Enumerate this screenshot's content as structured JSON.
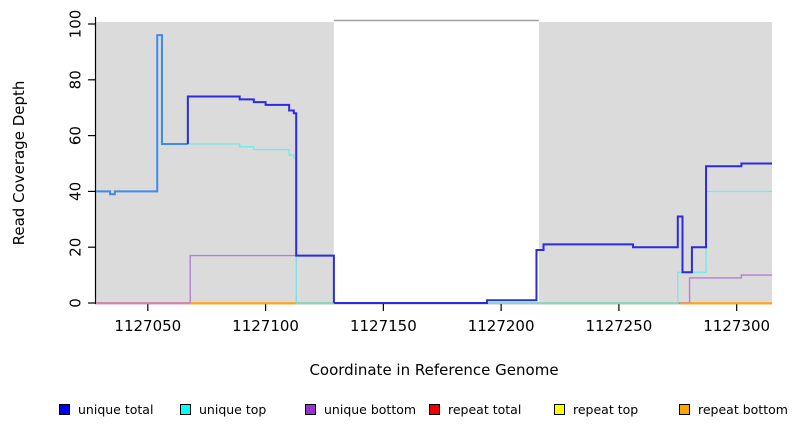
{
  "chart_data": {
    "type": "line",
    "step": true,
    "title": "",
    "xlabel": "Coordinate in Reference Genome",
    "ylabel": "Read Coverage Depth",
    "xlim": [
      1127028,
      1127315
    ],
    "ylim": [
      0,
      100
    ],
    "grid": false,
    "x_ticks": {
      "values": [
        1127050,
        1127100,
        1127150,
        1127200,
        1127250,
        1127300
      ],
      "labels": [
        "1127050",
        "1127100",
        "1127150",
        "1127200",
        "1127250",
        "1127300"
      ]
    },
    "y_ticks": {
      "values": [
        0,
        20,
        40,
        60,
        80,
        100
      ],
      "labels": [
        "0",
        "20",
        "40",
        "60",
        "80",
        "100"
      ]
    },
    "highlight_regions": [
      {
        "x0": 1127028,
        "x1": 1127129,
        "color": "#DBDBDB"
      },
      {
        "x0": 1127216,
        "x1": 1127315,
        "color": "#DBDBDB"
      }
    ],
    "gap_region": {
      "x0": 1127129,
      "x1": 1127216,
      "fill": "#FFFFFF",
      "top_border_color": "#A0A0A0"
    },
    "series": [
      {
        "name": "repeat total",
        "legend_color": "#EE0000",
        "width": 1.4,
        "parts": [
          {
            "color": "#E07CBC",
            "points": [
              [
                1127028,
                0
              ],
              [
                1127315,
                0
              ]
            ]
          }
        ]
      },
      {
        "name": "repeat top",
        "legend_color": "#FFFF00",
        "width": 1.4,
        "parts": [
          {
            "color": "#FFFF00",
            "points": [
              [
                1127028,
                0
              ],
              [
                1127315,
                0
              ]
            ]
          }
        ]
      },
      {
        "name": "repeat bottom",
        "legend_color": "#FFA500",
        "width": 1.6,
        "parts": [
          {
            "color": "#FFA126",
            "points": [
              [
                1127028,
                0
              ],
              [
                1127315,
                0
              ]
            ]
          }
        ]
      },
      {
        "name": "unique bottom",
        "legend_color": "#9932CC",
        "width": 1.4,
        "parts": [
          {
            "color": "#B57FD2",
            "points": [
              [
                1127028,
                0
              ],
              [
                1127068,
                17
              ],
              [
                1127113,
                0
              ],
              [
                1127280,
                9
              ],
              [
                1127302,
                10
              ],
              [
                1127315,
                10
              ]
            ]
          }
        ]
      },
      {
        "name": "unique top",
        "legend_color": "#00FFFF",
        "width": 1.4,
        "parts": [
          {
            "color": "#76E9E9",
            "points": [
              [
                1127028,
                40
              ],
              [
                1127034,
                39
              ],
              [
                1127036,
                40
              ],
              [
                1127054,
                96
              ],
              [
                1127056,
                57
              ],
              [
                1127089,
                56
              ],
              [
                1127095,
                55
              ],
              [
                1127110,
                53
              ],
              [
                1127112,
                52
              ],
              [
                1127113,
                0
              ],
              [
                1127275,
                11
              ],
              [
                1127287,
                40
              ],
              [
                1127315,
                40
              ]
            ]
          }
        ]
      },
      {
        "name": "unique total",
        "legend_color": "#0000EE",
        "width": 2,
        "parts": [
          {
            "color": "#3E8BE8",
            "points": [
              [
                1127028,
                40
              ],
              [
                1127034,
                39
              ],
              [
                1127036,
                40
              ],
              [
                1127054,
                96
              ],
              [
                1127056,
                57
              ],
              [
                1127067,
                57
              ]
            ]
          },
          {
            "color": "#2B2BDF",
            "points": [
              [
                1127067,
                57
              ],
              [
                1127067,
                74
              ],
              [
                1127089,
                73
              ],
              [
                1127095,
                72
              ],
              [
                1127100,
                71
              ],
              [
                1127110,
                69
              ],
              [
                1127112,
                68
              ],
              [
                1127113,
                17
              ],
              [
                1127129,
                0
              ],
              [
                1127194,
                1
              ],
              [
                1127215,
                19
              ],
              [
                1127218,
                21
              ],
              [
                1127256,
                20
              ],
              [
                1127275,
                31
              ],
              [
                1127277,
                11
              ],
              [
                1127281,
                20
              ],
              [
                1127287,
                49
              ],
              [
                1127302,
                50
              ],
              [
                1127315,
                50
              ]
            ]
          }
        ]
      }
    ],
    "baseline_segments": [
      {
        "x0": 1127028,
        "x1": 1127068,
        "color": "#E07CBC",
        "width": 1.5
      },
      {
        "x0": 1127068,
        "x1": 1127113,
        "color": "#FFA126",
        "width": 1.8
      },
      {
        "x0": 1127113,
        "x1": 1127129,
        "color": "#8FD8A4",
        "width": 1.5
      },
      {
        "x0": 1127216,
        "x1": 1127275,
        "color": "#8FD8A4",
        "width": 1.5
      },
      {
        "x0": 1127276,
        "x1": 1127315,
        "color": "#FFA126",
        "width": 1.8
      }
    ],
    "legend": [
      {
        "label": "unique total",
        "color": "#0000EE"
      },
      {
        "label": "unique top",
        "color": "#00FFFF"
      },
      {
        "label": "unique bottom",
        "color": "#9932CC"
      },
      {
        "label": "repeat total",
        "color": "#EE0000"
      },
      {
        "label": "repeat top",
        "color": "#FFFF00"
      },
      {
        "label": "repeat bottom",
        "color": "#FFA500"
      }
    ],
    "legend_position": "bottom"
  }
}
